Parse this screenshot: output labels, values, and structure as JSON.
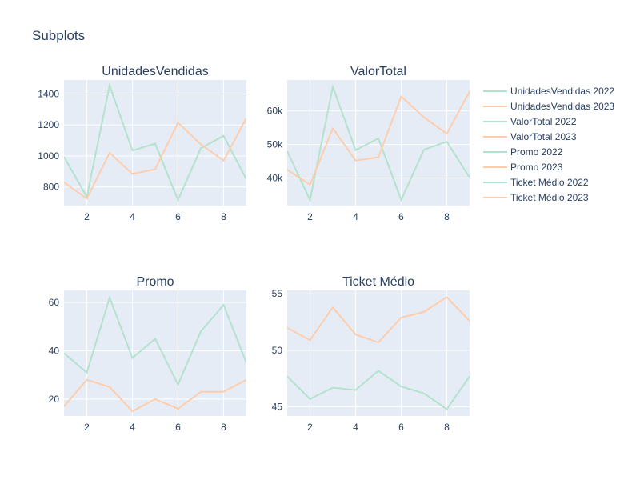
{
  "title": "Subplots",
  "colors": {
    "y2022": "#b3e2cd",
    "y2023": "#fdcdac",
    "plot_bg": "#e5ecf6"
  },
  "legend": [
    "UnidadesVendidas 2022",
    "UnidadesVendidas 2023",
    "ValorTotal 2022",
    "ValorTotal 2023",
    "Promo 2022",
    "Promo 2023",
    "Ticket Médio 2022",
    "Ticket Médio 2023"
  ],
  "chart_data": [
    {
      "type": "line",
      "title": "UnidadesVendidas",
      "x": [
        1,
        2,
        3,
        4,
        5,
        6,
        7,
        8,
        9
      ],
      "xlim": [
        1,
        9
      ],
      "ylim": [
        680,
        1490
      ],
      "xticks": [
        2,
        4,
        6,
        8
      ],
      "yticks": [
        800,
        1000,
        1200,
        1400
      ],
      "ytick_labels": [
        "800",
        "1000",
        "1200",
        "1400"
      ],
      "series": [
        {
          "name": "UnidadesVendidas 2022",
          "values": [
            995,
            735,
            1455,
            1035,
            1080,
            715,
            1050,
            1130,
            850
          ]
        },
        {
          "name": "UnidadesVendidas 2023",
          "values": [
            830,
            725,
            1020,
            885,
            915,
            1215,
            1075,
            970,
            1245
          ]
        }
      ]
    },
    {
      "type": "line",
      "title": "ValorTotal",
      "x": [
        1,
        2,
        3,
        4,
        5,
        6,
        7,
        8,
        9
      ],
      "xlim": [
        1,
        9
      ],
      "ylim": [
        31800,
        69200
      ],
      "xticks": [
        2,
        4,
        6,
        8
      ],
      "yticks": [
        40000,
        50000,
        60000
      ],
      "ytick_labels": [
        "40k",
        "50k",
        "60k"
      ],
      "series": [
        {
          "name": "ValorTotal 2022",
          "values": [
            48000,
            33500,
            67200,
            48300,
            51800,
            33500,
            48500,
            50800,
            40200
          ]
        },
        {
          "name": "ValorTotal 2023",
          "values": [
            42500,
            38000,
            54800,
            45200,
            46200,
            64300,
            58100,
            53200,
            65800
          ]
        }
      ]
    },
    {
      "type": "line",
      "title": "Promo",
      "x": [
        1,
        2,
        3,
        4,
        5,
        6,
        7,
        8,
        9
      ],
      "xlim": [
        1,
        9
      ],
      "ylim": [
        13,
        65
      ],
      "xticks": [
        2,
        4,
        6,
        8
      ],
      "yticks": [
        20,
        40,
        60
      ],
      "ytick_labels": [
        "20",
        "40",
        "60"
      ],
      "series": [
        {
          "name": "Promo 2022",
          "values": [
            39,
            31,
            62,
            37,
            45,
            26,
            48,
            59,
            35
          ]
        },
        {
          "name": "Promo 2023",
          "values": [
            17,
            28,
            25,
            15,
            20,
            16,
            23,
            23,
            28
          ]
        }
      ]
    },
    {
      "type": "line",
      "title": "Ticket Médio",
      "x": [
        1,
        2,
        3,
        4,
        5,
        6,
        7,
        8,
        9
      ],
      "xlim": [
        1,
        9
      ],
      "ylim": [
        44.2,
        55.3
      ],
      "xticks": [
        2,
        4,
        6,
        8
      ],
      "yticks": [
        45,
        50,
        55
      ],
      "ytick_labels": [
        "45",
        "50",
        "55"
      ],
      "series": [
        {
          "name": "Ticket Médio 2022",
          "values": [
            47.7,
            45.7,
            46.7,
            46.5,
            48.2,
            46.8,
            46.2,
            44.8,
            47.7
          ]
        },
        {
          "name": "Ticket Médio 2023",
          "values": [
            52.0,
            50.9,
            53.8,
            51.4,
            50.7,
            52.9,
            53.4,
            54.7,
            52.6
          ]
        }
      ]
    }
  ]
}
